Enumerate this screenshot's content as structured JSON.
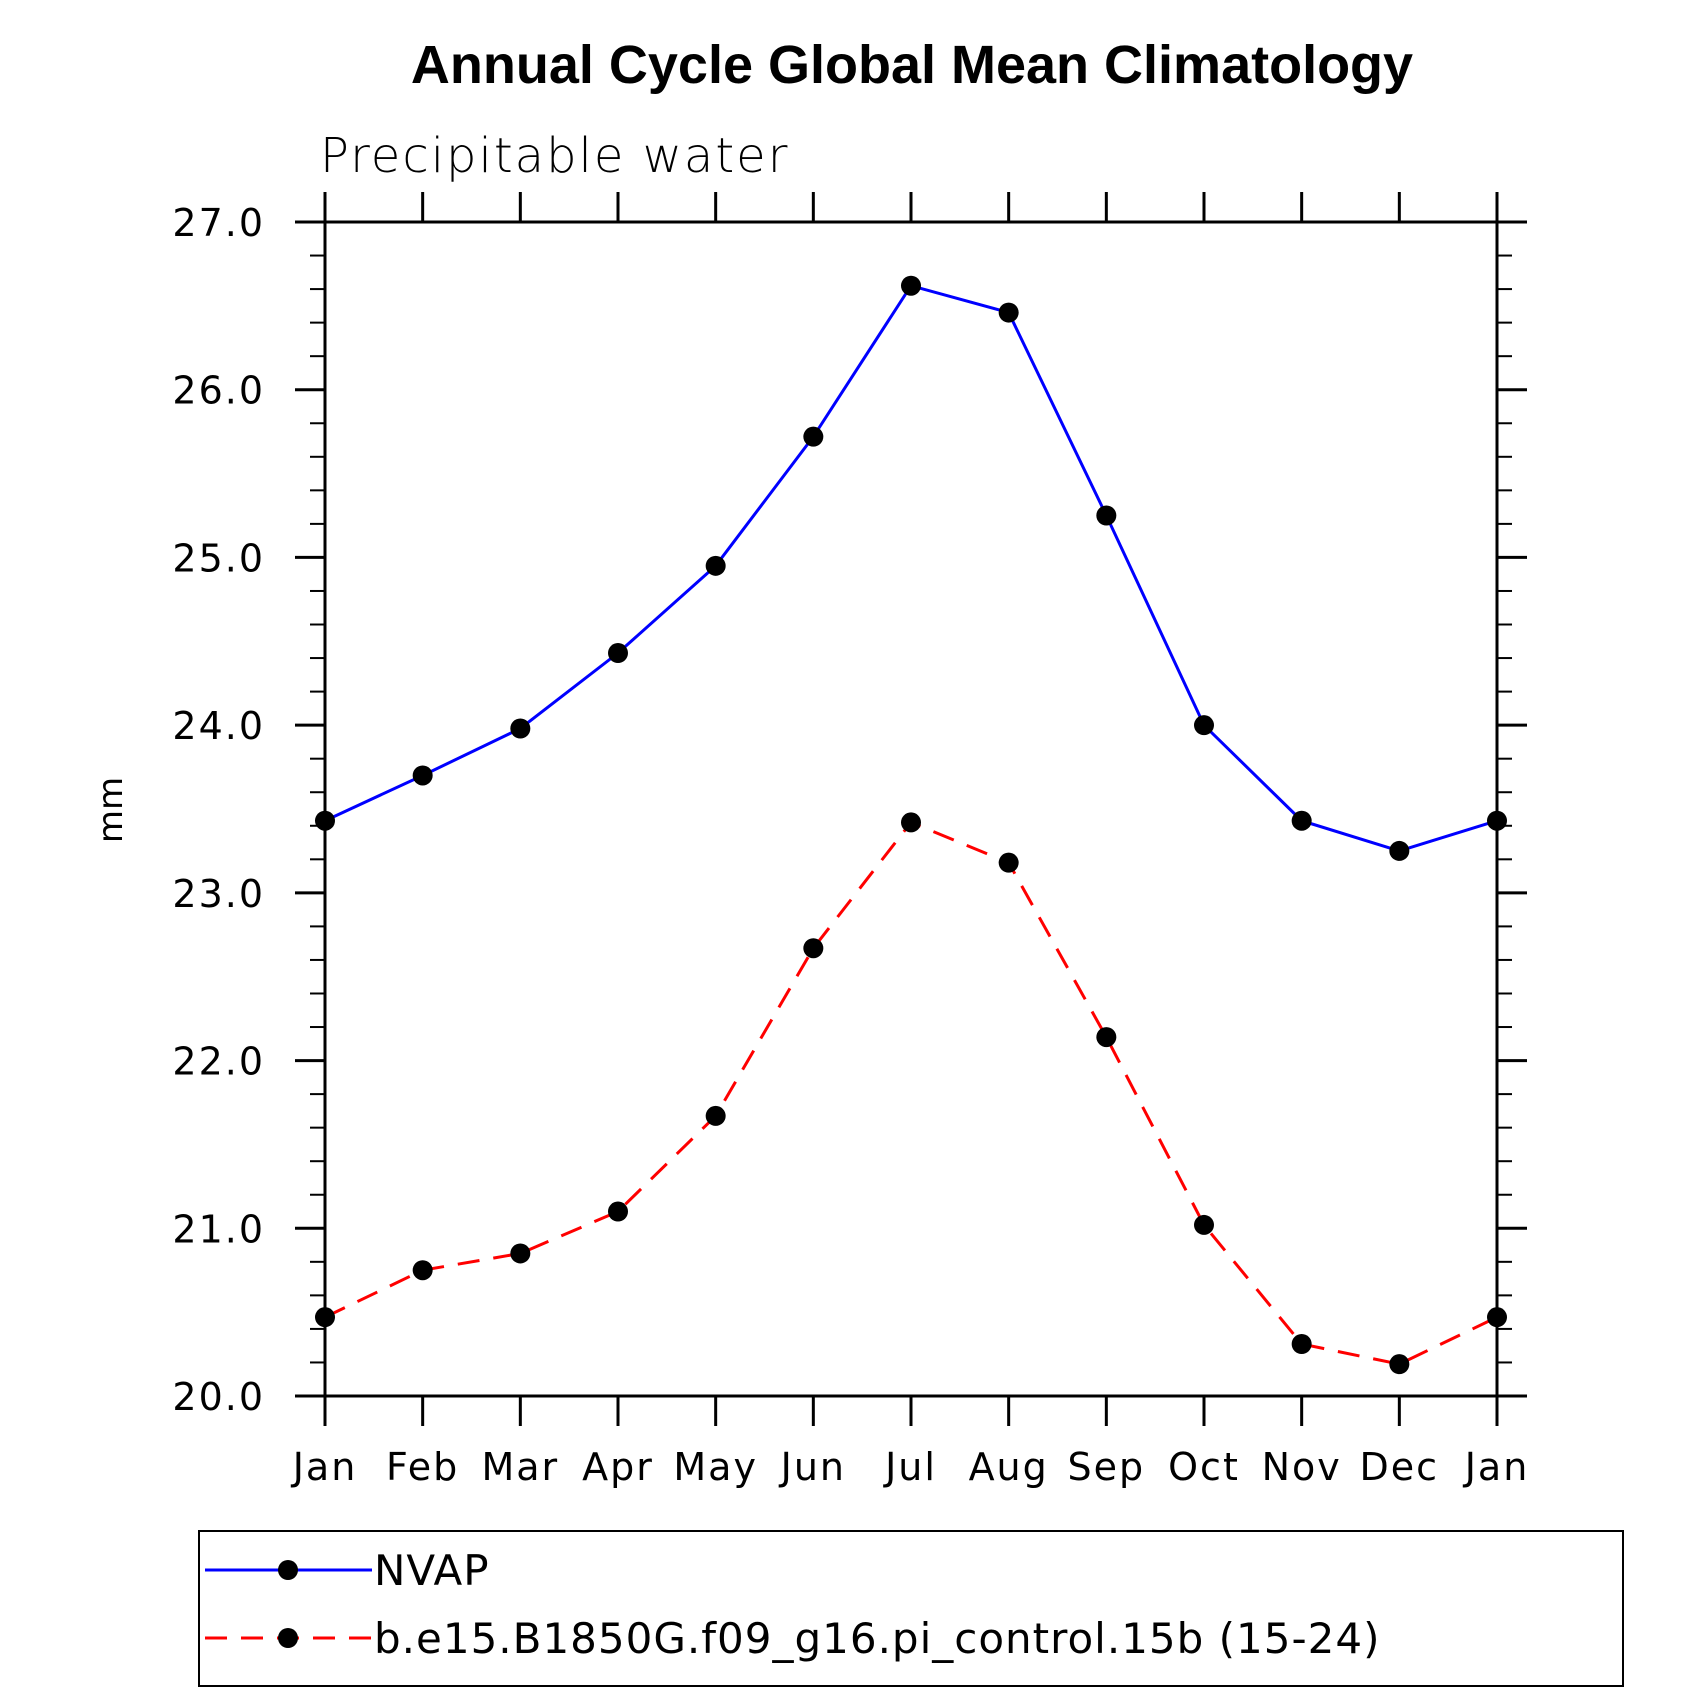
{
  "chart_data": {
    "type": "line",
    "title": "Annual Cycle Global Mean Climatology",
    "subtitle": "Precipitable water",
    "xlabel": "",
    "ylabel": "mm",
    "categories": [
      "Jan",
      "Feb",
      "Mar",
      "Apr",
      "May",
      "Jun",
      "Jul",
      "Aug",
      "Sep",
      "Oct",
      "Nov",
      "Dec",
      "Jan"
    ],
    "ylim": [
      20.0,
      27.0
    ],
    "yticks": [
      "20.0",
      "21.0",
      "22.0",
      "23.0",
      "24.0",
      "25.0",
      "26.0",
      "27.0"
    ],
    "grid": false,
    "legend_position": "bottom",
    "series": [
      {
        "name": "NVAP",
        "color": "#0000ff",
        "line_style": "solid",
        "marker": "filled-circle",
        "values": [
          23.43,
          23.7,
          23.98,
          24.43,
          24.95,
          25.72,
          26.62,
          26.46,
          25.25,
          24.0,
          23.43,
          23.25,
          23.43
        ]
      },
      {
        "name": "b.e15.B1850G.f09_g16.pi_control.15b (15-24)",
        "color": "#ff0000",
        "line_style": "dashed",
        "marker": "filled-circle",
        "values": [
          20.47,
          20.75,
          20.85,
          21.1,
          21.67,
          22.67,
          23.42,
          23.18,
          22.14,
          21.02,
          20.31,
          20.19,
          20.47
        ]
      }
    ]
  }
}
